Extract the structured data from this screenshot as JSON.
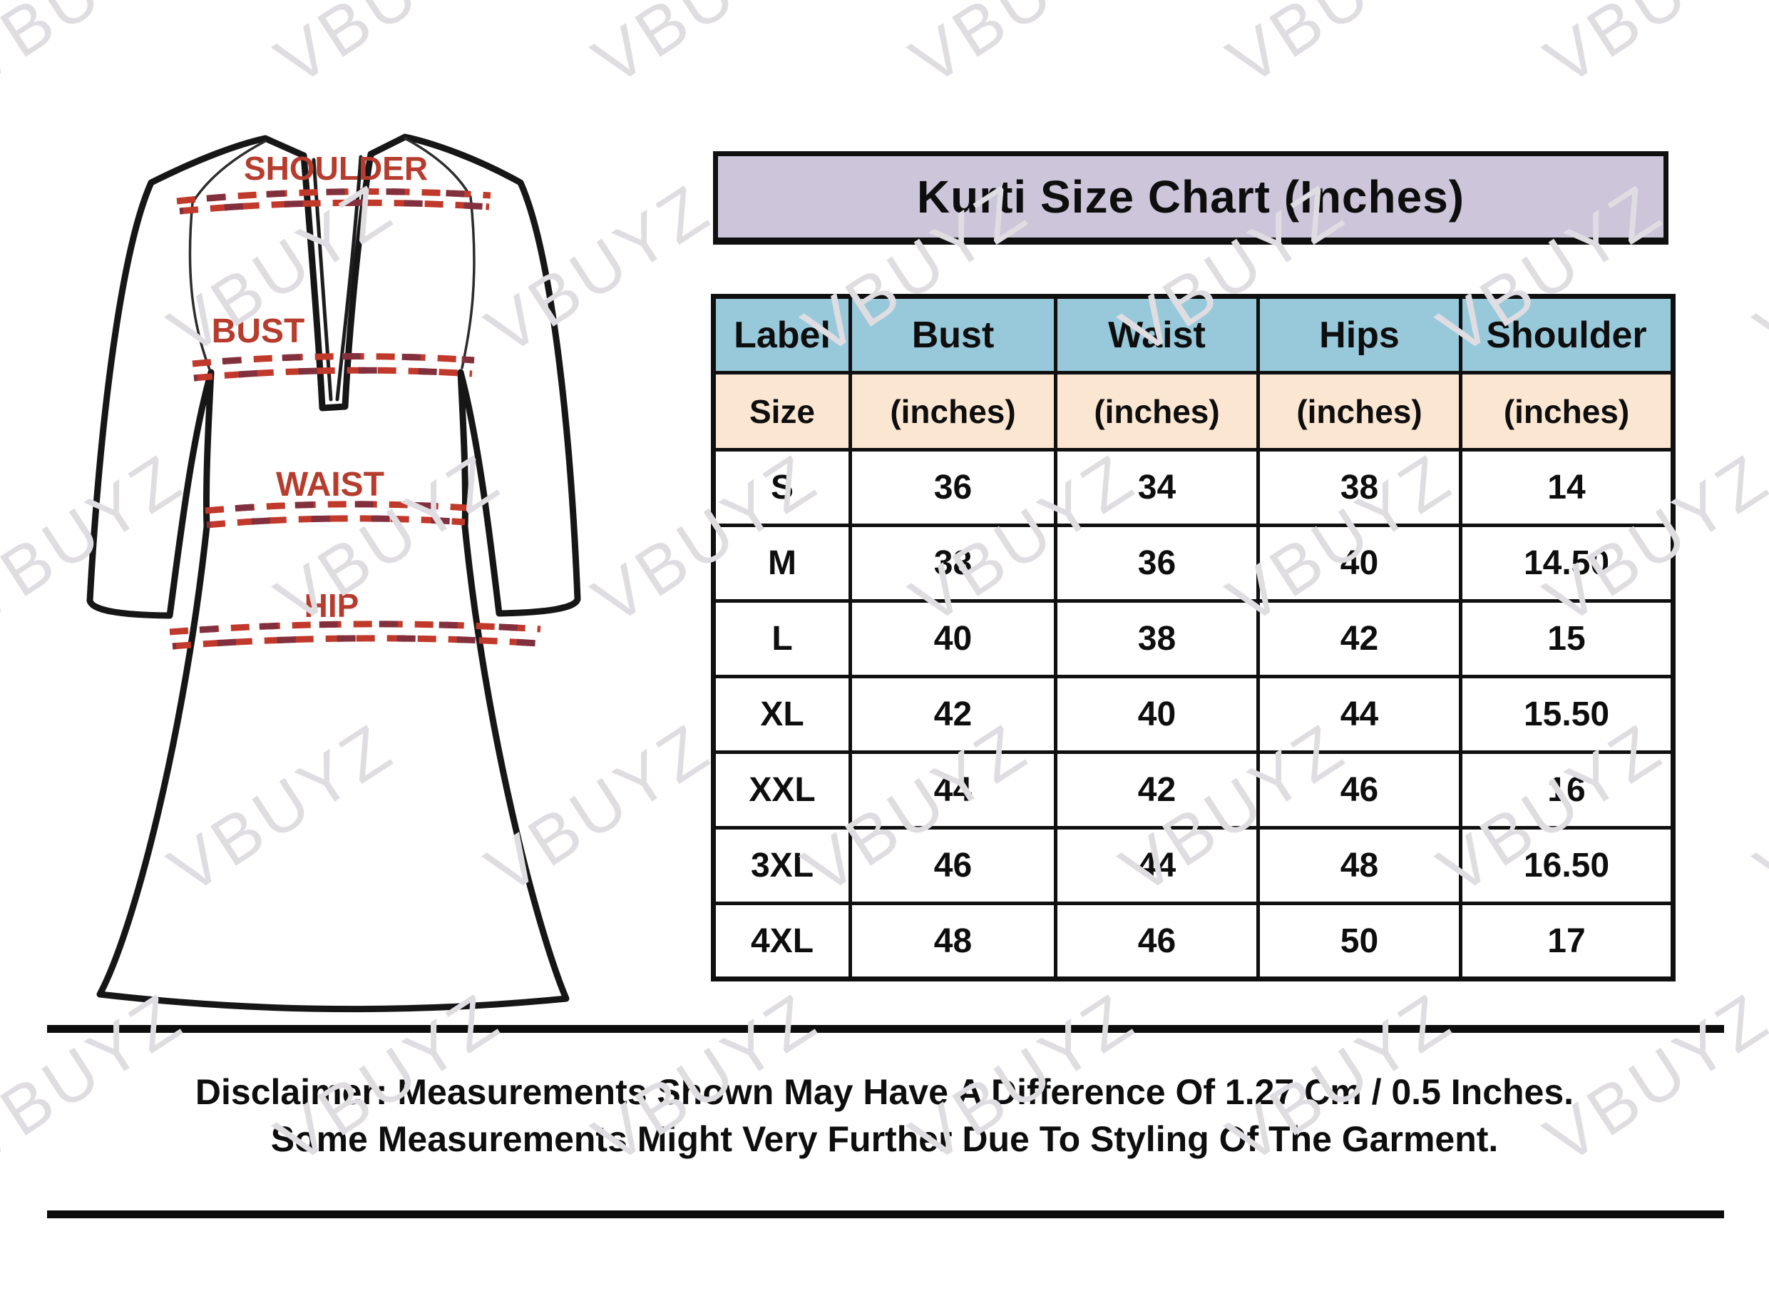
{
  "watermark": {
    "text": "VBUYZ"
  },
  "title": "Kurti Size Chart (Inches)",
  "diagram": {
    "labels": {
      "shoulder": "SHOULDER",
      "bust": "BUST",
      "waist": "WAIST",
      "hip": "HIP"
    },
    "label_color": "#b63c2d",
    "dash_color": "#c1392b",
    "dash_dark_color": "#83303e"
  },
  "table": {
    "title_bg": "#cdc5da",
    "header_bg": "#97c9da",
    "subheader_bg": "#fbe6d1",
    "header": [
      "Label",
      "Bust",
      "Waist",
      "Hips",
      "Shoulder"
    ],
    "subheader": [
      "Size",
      "(inches)",
      "(inches)",
      "(inches)",
      "(inches)"
    ],
    "rows": [
      [
        "S",
        "36",
        "34",
        "38",
        "14"
      ],
      [
        "M",
        "38",
        "36",
        "40",
        "14.50"
      ],
      [
        "L",
        "40",
        "38",
        "42",
        "15"
      ],
      [
        "XL",
        "42",
        "40",
        "44",
        "15.50"
      ],
      [
        "XXL",
        "44",
        "42",
        "46",
        "16"
      ],
      [
        "3XL",
        "46",
        "44",
        "48",
        "16.50"
      ],
      [
        "4XL",
        "48",
        "46",
        "50",
        "17"
      ]
    ]
  },
  "disclaimer": {
    "line1": "Disclaimer: Measurements Shown May Have A Difference Of 1.27 Cm / 0.5 Inches.",
    "line2": "Some Measurements Might Very Further Due To Styling Of The Garment."
  },
  "chart_data": {
    "type": "table",
    "title": "Kurti Size Chart (Inches)",
    "columns": [
      "Label / Size",
      "Bust (inches)",
      "Waist (inches)",
      "Hips (inches)",
      "Shoulder (inches)"
    ],
    "rows": [
      [
        "S",
        36,
        34,
        38,
        14
      ],
      [
        "M",
        38,
        36,
        40,
        14.5
      ],
      [
        "L",
        40,
        38,
        42,
        15
      ],
      [
        "XL",
        42,
        40,
        44,
        15.5
      ],
      [
        "XXL",
        44,
        42,
        46,
        16
      ],
      [
        "3XL",
        46,
        44,
        48,
        16.5
      ],
      [
        "4XL",
        48,
        46,
        50,
        17
      ]
    ],
    "notes": "Measurements may differ by 1.27 cm / 0.5 inches; styling may cause further variance."
  }
}
